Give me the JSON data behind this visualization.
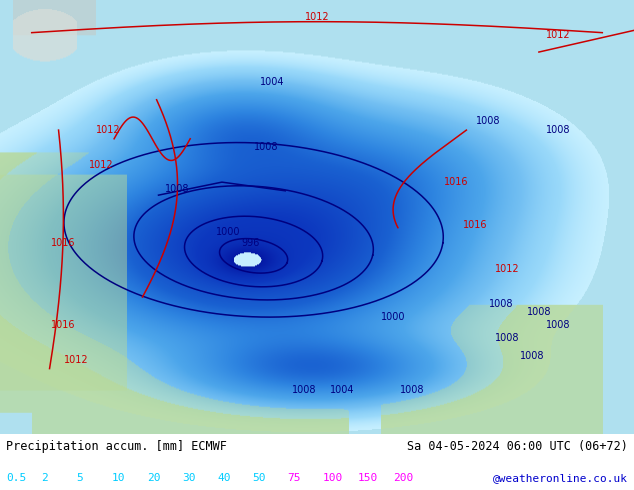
{
  "title_left": "Precipitation accum. [mm] ECMWF",
  "title_right": "Sa 04-05-2024 06:00 UTC (06+72)",
  "credit": "@weatheronline.co.uk",
  "colorbar_values": [
    "0.5",
    "2",
    "5",
    "10",
    "20",
    "30",
    "40",
    "50",
    "75",
    "100",
    "150",
    "200"
  ],
  "colorbar_text_colors": [
    "#00ccff",
    "#00ccff",
    "#00ccff",
    "#00ccff",
    "#00ccff",
    "#00ccff",
    "#00ccff",
    "#00ccff",
    "#ff00ff",
    "#ff00ff",
    "#ff00ff",
    "#ff00ff"
  ],
  "bg_color": "#ffffff",
  "label_color": "#000000",
  "credit_color": "#0000cc",
  "figsize": [
    6.34,
    4.9
  ],
  "dpi": 100,
  "map": {
    "ocean_color": [
      0.69,
      0.88,
      0.94
    ],
    "land_color_green": [
      0.72,
      0.85,
      0.6
    ],
    "land_color_gray": [
      0.78,
      0.78,
      0.75
    ],
    "precip_colors": [
      [
        0.78,
        0.94,
        1.0
      ],
      [
        0.6,
        0.85,
        0.98
      ],
      [
        0.45,
        0.75,
        0.95
      ],
      [
        0.3,
        0.65,
        0.92
      ],
      [
        0.18,
        0.52,
        0.88
      ],
      [
        0.1,
        0.38,
        0.82
      ],
      [
        0.05,
        0.22,
        0.75
      ],
      [
        0.02,
        0.1,
        0.65
      ]
    ],
    "precip_thresholds": [
      0.5,
      2,
      5,
      10,
      20,
      30,
      50,
      100
    ]
  }
}
